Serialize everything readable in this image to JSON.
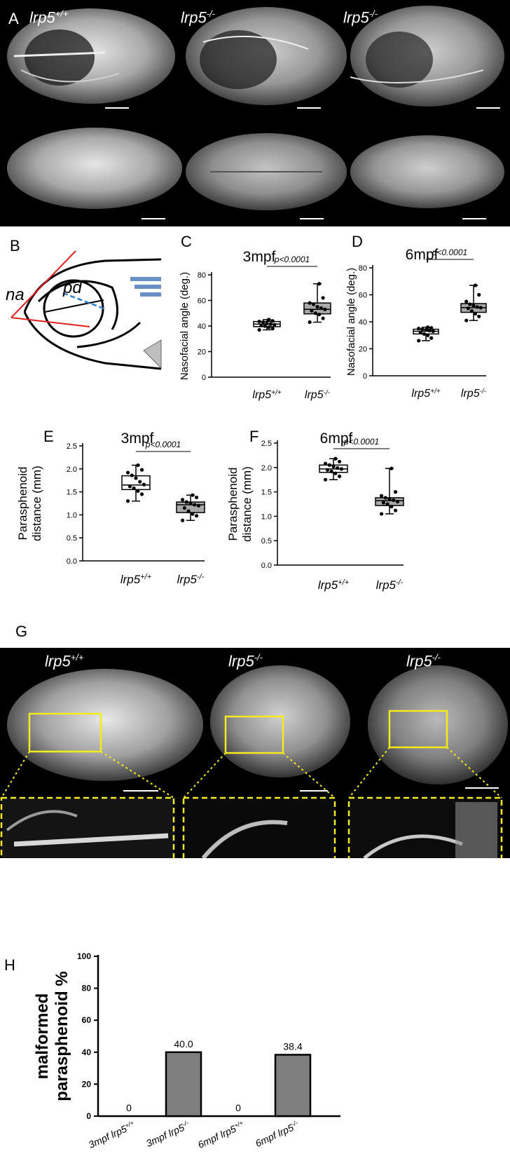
{
  "panel_a": {
    "letter": "A",
    "columns": [
      {
        "genotype_base": "lrp5",
        "genotype_sup": "+/+"
      },
      {
        "genotype_base": "lrp5",
        "genotype_sup": "-/-"
      },
      {
        "genotype_base": "lrp5",
        "genotype_sup": "-/-"
      }
    ]
  },
  "panel_b": {
    "letter": "B",
    "na_label": "na",
    "pd_label": "pd",
    "colors": {
      "angle_lines": "#e0221e",
      "pd_line": "#2f7fd0",
      "fin": "#6a8fc4"
    }
  },
  "panel_g": {
    "letter": "G",
    "columns": [
      {
        "genotype_base": "lrp5",
        "genotype_sup": "+/+"
      },
      {
        "genotype_base": "lrp5",
        "genotype_sup": "-/-"
      },
      {
        "genotype_base": "lrp5",
        "genotype_sup": "-/-"
      }
    ],
    "colors": {
      "highlight": "#f2ec1c"
    }
  },
  "chart_data": [
    {
      "panel": "C",
      "type": "box",
      "title": "3mpf",
      "ylabel": "Nasofacial angle (deg.)",
      "categories": [
        "lrp5+/+",
        "lrp5-/-"
      ],
      "category_base": [
        "lrp5",
        "lrp5"
      ],
      "category_sup": [
        "+/+",
        "-/-"
      ],
      "ylim": [
        0,
        80
      ],
      "yticks": [
        "0",
        "20",
        "40",
        "60",
        "80"
      ],
      "ytick_values": [
        0,
        20,
        40,
        60,
        80
      ],
      "significance": "p<0.0001",
      "boxes": [
        {
          "min": 37,
          "q1": 39.5,
          "median": 41.5,
          "q3": 43.5,
          "max": 45,
          "points": [
            37,
            38,
            39,
            40,
            40.5,
            41,
            41.5,
            42,
            43,
            43.5,
            44,
            45
          ],
          "fill": "#ffffff"
        },
        {
          "min": 43,
          "q1": 49.5,
          "median": 53,
          "q3": 58,
          "max": 73,
          "points": [
            43,
            46,
            49,
            50,
            52,
            53,
            54,
            55,
            57,
            58,
            62,
            73
          ],
          "fill": "#a9a9a9"
        }
      ]
    },
    {
      "panel": "D",
      "type": "box",
      "title": "6mpf",
      "ylabel": "Nasofacial angle (deg.)",
      "categories": [
        "lrp5+/+",
        "lrp5-/-"
      ],
      "category_base": [
        "lrp5",
        "lrp5"
      ],
      "category_sup": [
        "+/+",
        "-/-"
      ],
      "ylim": [
        0,
        80
      ],
      "yticks": [
        "0",
        "20",
        "40",
        "60",
        "80"
      ],
      "ytick_values": [
        0,
        20,
        40,
        60,
        80
      ],
      "significance": "p<0.0001",
      "boxes": [
        {
          "min": 26,
          "q1": 31,
          "median": 33,
          "q3": 34.5,
          "max": 36,
          "points": [
            26,
            28,
            30,
            31,
            32,
            33,
            33.5,
            34,
            34.5,
            35,
            35.5,
            36
          ],
          "fill": "#ffffff"
        },
        {
          "min": 41,
          "q1": 47,
          "median": 50.5,
          "q3": 53.5,
          "max": 67,
          "points": [
            41,
            44,
            46,
            48,
            50,
            50.5,
            51,
            52,
            53,
            55,
            60,
            67
          ],
          "fill": "#a9a9a9"
        }
      ]
    },
    {
      "panel": "E",
      "type": "box",
      "title": "3mpf",
      "ylabel": "Parasphenoid distance (mm)",
      "ylabel_lines": [
        "Parasphenoid",
        "distance (mm)"
      ],
      "categories": [
        "lrp5+/+",
        "lrp5-/-"
      ],
      "category_base": [
        "lrp5",
        "lrp5"
      ],
      "category_sup": [
        "+/+",
        "-/-"
      ],
      "ylim": [
        0,
        2.5
      ],
      "yticks": [
        "0.0",
        "0.5",
        "1.0",
        "1.5",
        "2.0",
        "2.5"
      ],
      "ytick_values": [
        0,
        0.5,
        1.0,
        1.5,
        2.0,
        2.5
      ],
      "significance": "p<0.0001",
      "boxes": [
        {
          "min": 1.3,
          "q1": 1.55,
          "median": 1.65,
          "q3": 1.85,
          "max": 2.08,
          "points": [
            1.3,
            1.45,
            1.52,
            1.58,
            1.62,
            1.66,
            1.72,
            1.8,
            1.86,
            1.92,
            1.98,
            2.08
          ],
          "fill": "#ffffff"
        },
        {
          "min": 0.88,
          "q1": 1.05,
          "median": 1.22,
          "q3": 1.28,
          "max": 1.43,
          "points": [
            0.88,
            0.98,
            1.02,
            1.08,
            1.15,
            1.2,
            1.22,
            1.25,
            1.28,
            1.33,
            1.38,
            1.43
          ],
          "fill": "#a9a9a9"
        }
      ]
    },
    {
      "panel": "F",
      "type": "box",
      "title": "6mpf",
      "ylabel": "Parasphenoid distance (mm)",
      "ylabel_lines": [
        "Parasphenoid",
        "distance (mm)"
      ],
      "categories": [
        "lrp5+/+",
        "lrp5-/-"
      ],
      "category_base": [
        "lrp5",
        "lrp5"
      ],
      "category_sup": [
        "+/+",
        "-/-"
      ],
      "ylim": [
        0,
        2.5
      ],
      "yticks": [
        "0.0",
        "0.5",
        "1.0",
        "1.5",
        "2.0",
        "2.5"
      ],
      "ytick_values": [
        0,
        0.5,
        1.0,
        1.5,
        2.0,
        2.5
      ],
      "significance": "p<0.0001",
      "boxes": [
        {
          "min": 1.75,
          "q1": 1.9,
          "median": 1.97,
          "q3": 2.05,
          "max": 2.18,
          "points": [
            1.75,
            1.82,
            1.88,
            1.92,
            1.95,
            1.97,
            1.99,
            2.02,
            2.05,
            2.08,
            2.12,
            2.18
          ],
          "fill": "#ffffff"
        },
        {
          "min": 1.05,
          "q1": 1.22,
          "median": 1.32,
          "q3": 1.38,
          "max": 1.98,
          "points": [
            1.05,
            1.12,
            1.2,
            1.25,
            1.28,
            1.3,
            1.33,
            1.35,
            1.38,
            1.42,
            1.5,
            1.98
          ],
          "fill": "#a9a9a9"
        }
      ]
    },
    {
      "panel": "H",
      "type": "bar",
      "ylabel": "malformed parasphenoid %",
      "ylabel_lines": [
        "malformed",
        "parasphenoid %"
      ],
      "categories": [
        "3mpf lrp5+/+",
        "3mpf lrp5-/-",
        "6mpf lrp5+/+",
        "6mpf lrp5-/-"
      ],
      "category_base": [
        "3mpf lrp5",
        "3mpf lrp5",
        "6mpf lrp5",
        "6mpf lrp5"
      ],
      "category_sup": [
        "+/+",
        "-/-",
        "+/+",
        "-/-"
      ],
      "values": [
        0,
        40.0,
        0,
        38.4
      ],
      "value_labels": [
        "0",
        "40.0",
        "0",
        "38.4"
      ],
      "ylim": [
        0,
        100
      ],
      "yticks": [
        "0",
        "20",
        "40",
        "60",
        "80",
        "100"
      ],
      "ytick_values": [
        0,
        20,
        40,
        60,
        80,
        100
      ],
      "bar_color": "#7f7f7f"
    }
  ]
}
